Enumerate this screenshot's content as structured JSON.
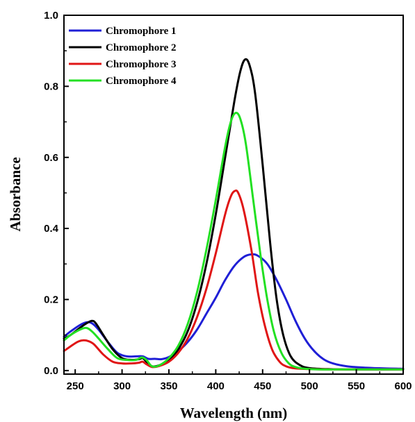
{
  "chart_data": {
    "type": "line",
    "xlabel": "Wavelength (nm)",
    "ylabel": "Absorbance",
    "xlim": [
      238,
      600
    ],
    "ylim": [
      -0.01,
      1.0
    ],
    "xticks": [
      250,
      300,
      350,
      400,
      450,
      500,
      550,
      600
    ],
    "yticks": [
      0.0,
      0.2,
      0.4,
      0.6,
      0.8,
      1.0
    ],
    "xtick_labels": [
      "250",
      "300",
      "350",
      "400",
      "450",
      "500",
      "550",
      "600"
    ],
    "ytick_labels": [
      "0.0",
      "0.2",
      "0.4",
      "0.6",
      "0.8",
      "1.0"
    ],
    "grid": false,
    "legend_position": "top-left",
    "series": [
      {
        "name": "Chromophore 1",
        "color": "#1f1fd6",
        "x": [
          238,
          245,
          255,
          262,
          268,
          275,
          285,
          295,
          305,
          315,
          322,
          328,
          335,
          342,
          350,
          360,
          370,
          380,
          390,
          400,
          410,
          420,
          430,
          438,
          445,
          455,
          465,
          475,
          485,
          495,
          505,
          515,
          525,
          540,
          560,
          580,
          600
        ],
        "y": [
          0.095,
          0.11,
          0.128,
          0.136,
          0.133,
          0.115,
          0.08,
          0.05,
          0.04,
          0.04,
          0.04,
          0.033,
          0.033,
          0.032,
          0.038,
          0.055,
          0.08,
          0.115,
          0.16,
          0.205,
          0.255,
          0.295,
          0.32,
          0.327,
          0.323,
          0.3,
          0.255,
          0.2,
          0.14,
          0.09,
          0.055,
          0.032,
          0.02,
          0.012,
          0.008,
          0.006,
          0.005
        ]
      },
      {
        "name": "Chromophore 2",
        "color": "#000000",
        "x": [
          238,
          245,
          255,
          262,
          268,
          272,
          280,
          290,
          300,
          310,
          318,
          322,
          326,
          332,
          340,
          350,
          360,
          370,
          380,
          390,
          400,
          410,
          420,
          426,
          431,
          436,
          442,
          450,
          458,
          465,
          472,
          480,
          490,
          500,
          520,
          550,
          600
        ],
        "y": [
          0.09,
          0.1,
          0.12,
          0.133,
          0.14,
          0.133,
          0.1,
          0.06,
          0.035,
          0.03,
          0.032,
          0.035,
          0.025,
          0.012,
          0.015,
          0.03,
          0.06,
          0.11,
          0.19,
          0.3,
          0.44,
          0.6,
          0.76,
          0.84,
          0.875,
          0.86,
          0.78,
          0.58,
          0.36,
          0.2,
          0.1,
          0.04,
          0.015,
          0.007,
          0.004,
          0.003,
          0.003
        ]
      },
      {
        "name": "Chromophore 3",
        "color": "#e01515",
        "x": [
          238,
          245,
          252,
          258,
          264,
          270,
          280,
          290,
          300,
          310,
          318,
          322,
          326,
          332,
          340,
          350,
          360,
          370,
          380,
          390,
          400,
          410,
          416,
          420,
          424,
          430,
          438,
          445,
          452,
          460,
          468,
          475,
          485,
          500,
          520,
          550,
          600
        ],
        "y": [
          0.055,
          0.068,
          0.08,
          0.085,
          0.083,
          0.074,
          0.045,
          0.025,
          0.02,
          0.02,
          0.022,
          0.025,
          0.018,
          0.01,
          0.013,
          0.025,
          0.05,
          0.09,
          0.15,
          0.23,
          0.33,
          0.44,
          0.49,
          0.505,
          0.5,
          0.45,
          0.34,
          0.22,
          0.13,
          0.06,
          0.025,
          0.012,
          0.006,
          0.004,
          0.003,
          0.003,
          0.003
        ]
      },
      {
        "name": "Chromophore 4",
        "color": "#22e022",
        "x": [
          238,
          245,
          255,
          262,
          268,
          275,
          285,
          295,
          305,
          315,
          321,
          326,
          332,
          340,
          350,
          360,
          370,
          380,
          390,
          400,
          410,
          416,
          421,
          426,
          432,
          440,
          448,
          455,
          462,
          470,
          478,
          485,
          495,
          510,
          530,
          560,
          600
        ],
        "y": [
          0.085,
          0.1,
          0.115,
          0.12,
          0.11,
          0.09,
          0.06,
          0.035,
          0.03,
          0.03,
          0.037,
          0.03,
          0.012,
          0.015,
          0.035,
          0.07,
          0.13,
          0.22,
          0.34,
          0.48,
          0.63,
          0.7,
          0.725,
          0.71,
          0.64,
          0.48,
          0.32,
          0.2,
          0.11,
          0.05,
          0.02,
          0.01,
          0.005,
          0.003,
          0.003,
          0.003,
          0.003
        ]
      }
    ]
  }
}
